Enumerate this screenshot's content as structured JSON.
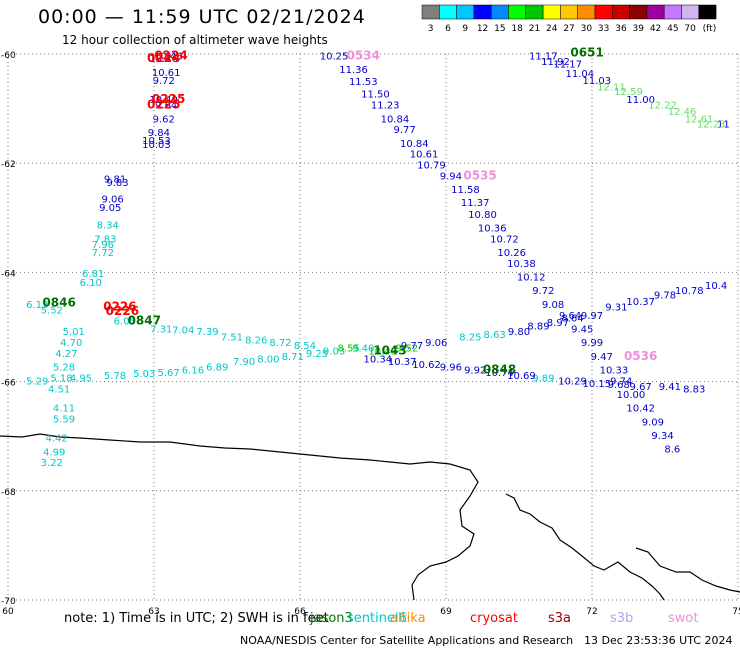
{
  "header": {
    "title": "00:00 — 11:59 UTC 02/21/2024",
    "subtitle": "12 hour collection of altimeter wave heights"
  },
  "colorbar": {
    "colors": [
      "#7f7f7f",
      "#00ffff",
      "#00c8ff",
      "#0000ff",
      "#008cff",
      "#00ff00",
      "#00c800",
      "#ffff00",
      "#ffc800",
      "#ff8c00",
      "#ff0000",
      "#c80000",
      "#8c0000",
      "#a000a0",
      "#c878ff",
      "#d2b4f0",
      "#000000"
    ],
    "labels": [
      "3",
      "6",
      "9",
      "12",
      "15",
      "18",
      "21",
      "24",
      "27",
      "30",
      "33",
      "36",
      "39",
      "42",
      "45",
      "70",
      "(ft)"
    ]
  },
  "axes": {
    "lon_ticks": [
      "60",
      "63",
      "66",
      "69",
      "72",
      "75"
    ],
    "lat_ticks": [
      "-60",
      "-62",
      "-64",
      "-66",
      "-68",
      "-70"
    ]
  },
  "satellites": [
    {
      "name": "jason3",
      "color": "#008000"
    },
    {
      "name": "sentinel6",
      "color": "#00c8c8"
    },
    {
      "name": "altika",
      "color": "#ff8c00"
    },
    {
      "name": "cryosat",
      "color": "#ff0000"
    },
    {
      "name": "s3a",
      "color": "#a00000"
    },
    {
      "name": "s3b",
      "color": "#b8a0f0"
    },
    {
      "name": "swot",
      "color": "#f090d8"
    }
  ],
  "footer": {
    "note": "note: 1) Time is in UTC; 2) SWH is in feet",
    "org": "NOAA/NESDIS Center for Satellite Applications and Research",
    "timestamp": "13 Dec 23:53:36 UTC 2024"
  },
  "tracks": [
    {
      "color": "#0000c8",
      "points": [
        {
          "v": "10.46",
          "lon": 63.3,
          "lat": -60.1
        },
        {
          "v": "10.46",
          "lon": 63.2,
          "lat": -60.15
        },
        {
          "v": "10.61",
          "lon": 63.25,
          "lat": -60.4
        },
        {
          "v": "9.72",
          "lon": 63.2,
          "lat": -60.55
        },
        {
          "v": "10.49",
          "lon": 63.2,
          "lat": -60.9
        },
        {
          "v": "9.64",
          "lon": 63.25,
          "lat": -61.0
        },
        {
          "v": "9.62",
          "lon": 63.2,
          "lat": -61.25
        },
        {
          "v": "9.84",
          "lon": 63.1,
          "lat": -61.5
        },
        {
          "v": "10.53",
          "lon": 63.05,
          "lat": -61.65
        },
        {
          "v": "10.03",
          "lon": 63.05,
          "lat": -61.72
        }
      ]
    },
    {
      "color": "#0000c8",
      "points": [
        {
          "v": "9.81",
          "lon": 62.2,
          "lat": -62.35
        },
        {
          "v": "9.83",
          "lon": 62.25,
          "lat": -62.42
        },
        {
          "v": "9.06",
          "lon": 62.15,
          "lat": -62.72
        },
        {
          "v": "9.05",
          "lon": 62.1,
          "lat": -62.88
        }
      ]
    },
    {
      "color": "#00c8c8",
      "points": [
        {
          "v": "8.34",
          "lon": 62.05,
          "lat": -63.2
        },
        {
          "v": "7.83",
          "lon": 62.0,
          "lat": -63.45
        },
        {
          "v": "7.96",
          "lon": 61.95,
          "lat": -63.55
        },
        {
          "v": "7.72",
          "lon": 61.95,
          "lat": -63.7
        },
        {
          "v": "6.81",
          "lon": 61.75,
          "lat": -64.08
        },
        {
          "v": "6.10",
          "lon": 61.7,
          "lat": -64.25
        },
        {
          "v": "6.13",
          "lon": 60.6,
          "lat": -64.65
        },
        {
          "v": "5.52",
          "lon": 60.9,
          "lat": -64.75
        },
        {
          "v": "5.01",
          "lon": 61.35,
          "lat": -65.15
        },
        {
          "v": "4.70",
          "lon": 61.3,
          "lat": -65.35
        },
        {
          "v": "4.27",
          "lon": 61.2,
          "lat": -65.55
        },
        {
          "v": "5.28",
          "lon": 61.15,
          "lat": -65.8
        },
        {
          "v": "5.18",
          "lon": 61.1,
          "lat": -66.0
        },
        {
          "v": "4.95",
          "lon": 61.5,
          "lat": -66.0
        },
        {
          "v": "5.29",
          "lon": 60.6,
          "lat": -66.05
        },
        {
          "v": "4.51",
          "lon": 61.05,
          "lat": -66.2
        },
        {
          "v": "4.11",
          "lon": 61.15,
          "lat": -66.55
        },
        {
          "v": "5.59",
          "lon": 61.15,
          "lat": -66.75
        },
        {
          "v": "4.42",
          "lon": 61.0,
          "lat": -67.1
        },
        {
          "v": "4.99",
          "lon": 60.95,
          "lat": -67.35
        },
        {
          "v": "3.22",
          "lon": 60.9,
          "lat": -67.55
        },
        {
          "v": "6.05",
          "lon": 62.4,
          "lat": -64.95
        },
        {
          "v": "5.78",
          "lon": 62.2,
          "lat": -65.95
        },
        {
          "v": "5.03",
          "lon": 62.8,
          "lat": -65.92
        },
        {
          "v": "5.67",
          "lon": 63.3,
          "lat": -65.9
        },
        {
          "v": "6.16",
          "lon": 63.8,
          "lat": -65.85
        },
        {
          "v": "6.89",
          "lon": 64.3,
          "lat": -65.8
        },
        {
          "v": "7.90",
          "lon": 64.85,
          "lat": -65.7
        },
        {
          "v": "8.00",
          "lon": 65.35,
          "lat": -65.65
        },
        {
          "v": "8.71",
          "lon": 65.85,
          "lat": -65.6
        },
        {
          "v": "9.25",
          "lon": 66.35,
          "lat": -65.55
        },
        {
          "v": "7.31",
          "lon": 63.15,
          "lat": -65.1
        },
        {
          "v": "7.04",
          "lon": 63.6,
          "lat": -65.12
        },
        {
          "v": "7.39",
          "lon": 64.1,
          "lat": -65.15
        },
        {
          "v": "7.51",
          "lon": 64.6,
          "lat": -65.25
        },
        {
          "v": "8.26",
          "lon": 65.1,
          "lat": -65.3
        },
        {
          "v": "8.72",
          "lon": 65.6,
          "lat": -65.35
        },
        {
          "v": "8.54",
          "lon": 66.1,
          "lat": -65.4
        },
        {
          "v": "9.03",
          "lon": 66.7,
          "lat": -65.5
        },
        {
          "v": "9.40",
          "lon": 67.3,
          "lat": -65.45
        },
        {
          "v": "8.25",
          "lon": 69.5,
          "lat": -65.25
        },
        {
          "v": "8.63",
          "lon": 70.0,
          "lat": -65.2
        },
        {
          "v": "9.89",
          "lon": 71.0,
          "lat": -66.0
        }
      ]
    },
    {
      "color": "#0000c8",
      "points": [
        {
          "v": "10.25",
          "lon": 66.7,
          "lat": -60.1
        },
        {
          "v": "11.36",
          "lon": 67.1,
          "lat": -60.35
        },
        {
          "v": "11.53",
          "lon": 67.3,
          "lat": -60.57
        },
        {
          "v": "11.50",
          "lon": 67.55,
          "lat": -60.8
        },
        {
          "v": "11.23",
          "lon": 67.75,
          "lat": -61.0
        },
        {
          "v": "10.84",
          "lon": 67.95,
          "lat": -61.25
        },
        {
          "v": "9.77",
          "lon": 68.15,
          "lat": -61.45
        },
        {
          "v": "10.84",
          "lon": 68.35,
          "lat": -61.7
        },
        {
          "v": "10.61",
          "lon": 68.55,
          "lat": -61.9
        },
        {
          "v": "10.79",
          "lon": 68.7,
          "lat": -62.1
        },
        {
          "v": "9.94",
          "lon": 69.1,
          "lat": -62.3
        },
        {
          "v": "11.58",
          "lon": 69.4,
          "lat": -62.55
        },
        {
          "v": "11.37",
          "lon": 69.6,
          "lat": -62.78
        },
        {
          "v": "10.80",
          "lon": 69.75,
          "lat": -63.0
        },
        {
          "v": "10.36",
          "lon": 69.95,
          "lat": -63.25
        },
        {
          "v": "10.72",
          "lon": 70.2,
          "lat": -63.45
        },
        {
          "v": "10.26",
          "lon": 70.35,
          "lat": -63.7
        },
        {
          "v": "10.38",
          "lon": 70.55,
          "lat": -63.9
        },
        {
          "v": "10.12",
          "lon": 70.75,
          "lat": -64.15
        },
        {
          "v": "9.72",
          "lon": 71.0,
          "lat": -64.4
        },
        {
          "v": "9.08",
          "lon": 71.2,
          "lat": -64.65
        },
        {
          "v": "9.64",
          "lon": 71.55,
          "lat": -64.85
        },
        {
          "v": "9.45",
          "lon": 71.8,
          "lat": -65.1
        },
        {
          "v": "9.99",
          "lon": 72.0,
          "lat": -65.35
        },
        {
          "v": "9.47",
          "lon": 72.2,
          "lat": -65.6
        },
        {
          "v": "10.33",
          "lon": 72.45,
          "lat": -65.85
        },
        {
          "v": "9.74",
          "lon": 72.6,
          "lat": -66.05
        },
        {
          "v": "10.00",
          "lon": 72.8,
          "lat": -66.3
        },
        {
          "v": "10.42",
          "lon": 73.0,
          "lat": -66.55
        },
        {
          "v": "9.09",
          "lon": 73.25,
          "lat": -66.8
        },
        {
          "v": "9.34",
          "lon": 73.45,
          "lat": -67.05
        },
        {
          "v": "8.6",
          "lon": 73.65,
          "lat": -67.3
        }
      ]
    },
    {
      "color": "#0000c8",
      "points": [
        {
          "v": "10.34",
          "lon": 67.6,
          "lat": -65.65
        },
        {
          "v": "10.37",
          "lon": 68.1,
          "lat": -65.7
        },
        {
          "v": "10.62",
          "lon": 68.6,
          "lat": -65.75
        },
        {
          "v": "9.96",
          "lon": 69.1,
          "lat": -65.8
        },
        {
          "v": "9.92",
          "lon": 69.6,
          "lat": -65.85
        },
        {
          "v": "10.74",
          "lon": 70.1,
          "lat": -65.9
        },
        {
          "v": "10.69",
          "lon": 70.55,
          "lat": -65.95
        },
        {
          "v": "10.29",
          "lon": 71.6,
          "lat": -66.05
        },
        {
          "v": "10.15",
          "lon": 72.1,
          "lat": -66.1
        },
        {
          "v": "9.68",
          "lon": 72.55,
          "lat": -66.12
        },
        {
          "v": "9.67",
          "lon": 73.0,
          "lat": -66.15
        },
        {
          "v": "9.41",
          "lon": 73.6,
          "lat": -66.15
        },
        {
          "v": "8.83",
          "lon": 74.1,
          "lat": -66.2
        },
        {
          "v": "9.77",
          "lon": 68.3,
          "lat": -65.4
        },
        {
          "v": "9.06",
          "lon": 68.8,
          "lat": -65.35
        },
        {
          "v": "9.80",
          "lon": 70.5,
          "lat": -65.15
        },
        {
          "v": "8.89",
          "lon": 70.9,
          "lat": -65.05
        },
        {
          "v": "8.97",
          "lon": 71.3,
          "lat": -64.98
        },
        {
          "v": "8.64",
          "lon": 71.6,
          "lat": -64.9
        },
        {
          "v": "9.97",
          "lon": 72.0,
          "lat": -64.85
        },
        {
          "v": "9.31",
          "lon": 72.5,
          "lat": -64.7
        },
        {
          "v": "10.37",
          "lon": 73.0,
          "lat": -64.6
        },
        {
          "v": "9.78",
          "lon": 73.5,
          "lat": -64.48
        },
        {
          "v": "10.78",
          "lon": 74.0,
          "lat": -64.4
        },
        {
          "v": "10.4",
          "lon": 74.55,
          "lat": -64.3
        }
      ]
    },
    {
      "color": "#0000c8",
      "points": [
        {
          "v": "11.17",
          "lon": 71.0,
          "lat": -60.1
        },
        {
          "v": "11.92",
          "lon": 71.25,
          "lat": -60.2
        },
        {
          "v": "11.17",
          "lon": 71.5,
          "lat": -60.25
        },
        {
          "v": "11.04",
          "lon": 71.75,
          "lat": -60.42
        },
        {
          "v": "11.03",
          "lon": 72.1,
          "lat": -60.55
        },
        {
          "v": "11.00",
          "lon": 73.0,
          "lat": -60.9
        },
        {
          "v": "11",
          "lon": 74.7,
          "lat": -61.35
        }
      ]
    },
    {
      "color": "#66dd66",
      "points": [
        {
          "v": "12.11",
          "lon": 72.4,
          "lat": -60.67
        },
        {
          "v": "12.59",
          "lon": 72.75,
          "lat": -60.75
        },
        {
          "v": "12.22",
          "lon": 73.45,
          "lat": -61.0
        },
        {
          "v": "12.46",
          "lon": 73.85,
          "lat": -61.12
        },
        {
          "v": "12.61",
          "lon": 74.2,
          "lat": -61.25
        },
        {
          "v": "12.23",
          "lon": 74.45,
          "lat": -61.35
        }
      ]
    },
    {
      "color": "#00c800",
      "points": [
        {
          "v": "10.43",
          "lon": 67.7,
          "lat": -65.5
        },
        {
          "v": "8.55",
          "lon": 67.0,
          "lat": -65.45
        },
        {
          "v": "9.52",
          "lon": 68.2,
          "lat": -65.45
        }
      ]
    }
  ],
  "time_labels": [
    {
      "v": "0224",
      "lon": 63.35,
      "lat": -60.1,
      "color": "#ff0000"
    },
    {
      "v": "0224",
      "lon": 63.2,
      "lat": -60.15,
      "color": "#ff0000"
    },
    {
      "v": "0225",
      "lon": 63.3,
      "lat": -60.9,
      "color": "#ff0000"
    },
    {
      "v": "0225",
      "lon": 63.2,
      "lat": -61.0,
      "color": "#ff0000"
    },
    {
      "v": "0226",
      "lon": 62.3,
      "lat": -64.7,
      "color": "#ff0000"
    },
    {
      "v": "0226",
      "lon": 62.35,
      "lat": -64.78,
      "color": "#ff0000"
    },
    {
      "v": "0846",
      "lon": 61.05,
      "lat": -64.62,
      "color": "#007000"
    },
    {
      "v": "0847",
      "lon": 62.8,
      "lat": -64.95,
      "color": "#007000"
    },
    {
      "v": "0534",
      "lon": 67.3,
      "lat": -60.1,
      "color": "#f090d8"
    },
    {
      "v": "0535",
      "lon": 69.7,
      "lat": -62.3,
      "color": "#f090d8"
    },
    {
      "v": "0536",
      "lon": 73.0,
      "lat": -65.6,
      "color": "#f090d8"
    },
    {
      "v": "0651",
      "lon": 71.9,
      "lat": -60.05,
      "color": "#007000"
    },
    {
      "v": "1043",
      "lon": 67.85,
      "lat": -65.5,
      "color": "#007000"
    },
    {
      "v": "0848",
      "lon": 70.1,
      "lat": -65.85,
      "color": "#007000"
    }
  ]
}
